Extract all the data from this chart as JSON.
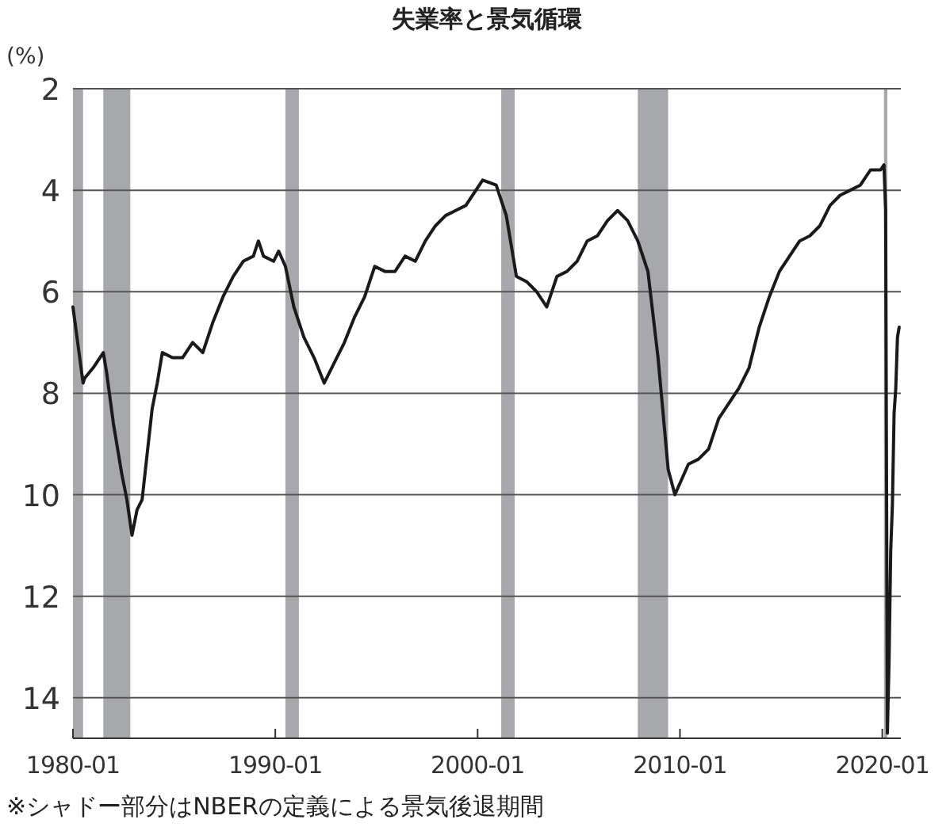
{
  "chart_data": {
    "type": "line",
    "title": "失業率と景気循環",
    "ylabel": "(%)",
    "annotations": [
      "※シャドー部分はNBERの定義による景気後退期間"
    ],
    "x": [
      "1980-01",
      "1980-07",
      "1980-08",
      "1981-01",
      "1981-07",
      "1981-09",
      "1982-01",
      "1982-06",
      "1982-09",
      "1982-12",
      "1983-03",
      "1983-06",
      "1983-09",
      "1983-12",
      "1984-03",
      "1984-06",
      "1984-12",
      "1985-06",
      "1985-12",
      "1986-06",
      "1986-12",
      "1987-06",
      "1987-12",
      "1988-06",
      "1988-12",
      "1989-03",
      "1989-06",
      "1989-12",
      "1990-03",
      "1990-07",
      "1990-12",
      "1991-06",
      "1991-12",
      "1992-06",
      "1992-12",
      "1993-06",
      "1993-12",
      "1994-06",
      "1994-12",
      "1995-06",
      "1995-12",
      "1996-06",
      "1996-12",
      "1997-06",
      "1997-12",
      "1998-06",
      "1998-12",
      "1999-06",
      "1999-12",
      "2000-04",
      "2000-12",
      "2001-06",
      "2001-12",
      "2002-06",
      "2002-12",
      "2003-06",
      "2003-12",
      "2004-06",
      "2004-12",
      "2005-06",
      "2005-12",
      "2006-06",
      "2006-12",
      "2007-06",
      "2007-12",
      "2008-06",
      "2008-12",
      "2009-06",
      "2009-10",
      "2010-06",
      "2010-12",
      "2011-06",
      "2011-12",
      "2012-06",
      "2012-12",
      "2013-06",
      "2013-12",
      "2014-06",
      "2014-12",
      "2015-06",
      "2015-12",
      "2016-06",
      "2016-12",
      "2017-06",
      "2017-12",
      "2018-06",
      "2018-12",
      "2019-06",
      "2019-12",
      "2020-02",
      "2020-03",
      "2020-04",
      "2020-05",
      "2020-06",
      "2020-07",
      "2020-08",
      "2020-09",
      "2020-10",
      "2020-11"
    ],
    "series": [
      {
        "color": "#1a1a1a",
        "values": [
          6.3,
          7.8,
          7.7,
          7.5,
          7.2,
          7.6,
          8.6,
          9.6,
          10.1,
          10.8,
          10.3,
          10.1,
          9.2,
          8.3,
          7.8,
          7.2,
          7.3,
          7.3,
          7.0,
          7.2,
          6.6,
          6.1,
          5.7,
          5.4,
          5.3,
          5.0,
          5.3,
          5.4,
          5.2,
          5.5,
          6.3,
          6.9,
          7.3,
          7.8,
          7.4,
          7.0,
          6.5,
          6.1,
          5.5,
          5.6,
          5.6,
          5.3,
          5.4,
          5.0,
          4.7,
          4.5,
          4.4,
          4.3,
          4.0,
          3.8,
          3.9,
          4.5,
          5.7,
          5.8,
          6.0,
          6.3,
          5.7,
          5.6,
          5.4,
          5.0,
          4.9,
          4.6,
          4.4,
          4.6,
          5.0,
          5.6,
          7.3,
          9.5,
          10.0,
          9.4,
          9.3,
          9.1,
          8.5,
          8.2,
          7.9,
          7.5,
          6.7,
          6.1,
          5.6,
          5.3,
          5.0,
          4.9,
          4.7,
          4.3,
          4.1,
          4.0,
          3.9,
          3.6,
          3.6,
          3.5,
          4.4,
          14.7,
          13.3,
          11.1,
          10.2,
          8.4,
          7.9,
          6.9,
          6.7
        ]
      }
    ],
    "xlim": [
      "1980-01",
      "2020-12"
    ],
    "xticks": [
      "1980-01",
      "1990-01",
      "2000-01",
      "2010-01",
      "2020-01"
    ],
    "ylim": [
      14.8,
      2
    ],
    "yticks": [
      2,
      4,
      6,
      8,
      10,
      12,
      14
    ],
    "grid": "y",
    "line_style": "solid",
    "marker": "none",
    "bands": [
      {
        "axis": "x",
        "from": "1980-01",
        "to": "1980-07",
        "color": "#a7a8ab"
      },
      {
        "axis": "x",
        "from": "1981-07",
        "to": "1982-11",
        "color": "#a7a8ab"
      },
      {
        "axis": "x",
        "from": "1990-07",
        "to": "1991-03",
        "color": "#a7a8ab"
      },
      {
        "axis": "x",
        "from": "2001-03",
        "to": "2001-11",
        "color": "#a7a8ab"
      },
      {
        "axis": "x",
        "from": "2007-12",
        "to": "2009-06",
        "color": "#a7a8ab"
      },
      {
        "axis": "x",
        "from": "2020-02",
        "to": "2020-04",
        "color": "#a7a8ab"
      }
    ]
  }
}
